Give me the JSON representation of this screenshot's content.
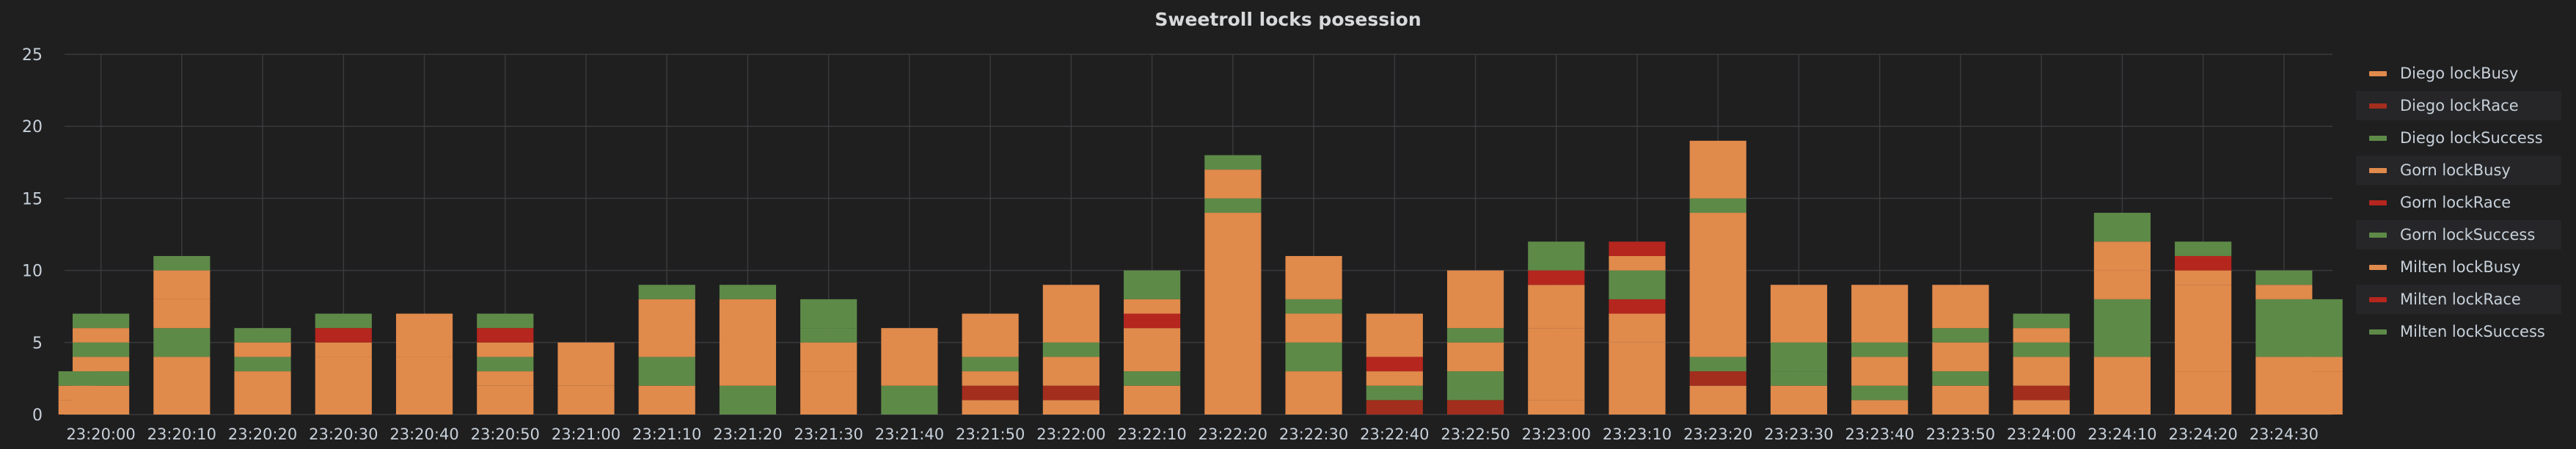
{
  "chart_data": {
    "type": "bar",
    "title": "Sweetroll locks posession",
    "xlabel": "",
    "ylabel": "",
    "ylim": [
      0,
      25
    ],
    "yticks": [
      0,
      5,
      10,
      15,
      20,
      25
    ],
    "x_tick_labels": [
      "23:20:00",
      "23:20:10",
      "23:20:20",
      "23:20:30",
      "23:20:40",
      "23:20:50",
      "23:21:00",
      "23:21:10",
      "23:21:20",
      "23:21:30",
      "23:21:40",
      "23:21:50",
      "23:22:00",
      "23:22:10",
      "23:22:20",
      "23:22:30",
      "23:22:40",
      "23:22:50",
      "23:23:00",
      "23:23:10",
      "23:23:20",
      "23:23:30",
      "23:23:40",
      "23:23:50",
      "23:24:00",
      "23:24:10",
      "23:24:20",
      "23:24:30"
    ],
    "x_range_seconds": [
      -4.5,
      276
    ],
    "grid": true,
    "legend_position": "right",
    "stacked": true,
    "series_order": [
      "Diego lockBusy",
      "Diego lockRace",
      "Diego lockSuccess",
      "Gorn lockBusy",
      "Gorn lockRace",
      "Gorn lockSuccess",
      "Milten lockBusy",
      "Milten lockRace",
      "Milten lockSuccess"
    ],
    "series": [
      {
        "name": "Diego lockBusy",
        "color": "#e08a4c"
      },
      {
        "name": "Diego lockRace",
        "color": "#a32e1e"
      },
      {
        "name": "Diego lockSuccess",
        "color": "#5e8a48"
      },
      {
        "name": "Gorn lockBusy",
        "color": "#e08a4c"
      },
      {
        "name": "Gorn lockRace",
        "color": "#b5261e"
      },
      {
        "name": "Gorn lockSuccess",
        "color": "#5e8a48"
      },
      {
        "name": "Milten lockBusy",
        "color": "#e08a4c"
      },
      {
        "name": "Milten lockRace",
        "color": "#b5261e"
      },
      {
        "name": "Milten lockSuccess",
        "color": "#5e8a48"
      }
    ],
    "x_seconds": [
      -3,
      0,
      10,
      20,
      30,
      40,
      50,
      60,
      70,
      80,
      90,
      100,
      110,
      120,
      130,
      140,
      150,
      160,
      170,
      180,
      190,
      200,
      210,
      220,
      230,
      240,
      250,
      260,
      270,
      275
    ],
    "values": [
      [
        1,
        0,
        0,
        0,
        0,
        0,
        1,
        0,
        1
      ],
      [
        2,
        0,
        1,
        1,
        0,
        1,
        1,
        0,
        1
      ],
      [
        4,
        0,
        2,
        2,
        0,
        0,
        2,
        0,
        1
      ],
      [
        3,
        0,
        0,
        0,
        0,
        1,
        1,
        0,
        1
      ],
      [
        4,
        0,
        0,
        0,
        0,
        0,
        1,
        1,
        1
      ],
      [
        4,
        0,
        0,
        0,
        0,
        0,
        3,
        0,
        0
      ],
      [
        2,
        0,
        0,
        1,
        0,
        1,
        1,
        1,
        1
      ],
      [
        2,
        0,
        0,
        0,
        0,
        0,
        3,
        0,
        0
      ],
      [
        2,
        0,
        2,
        3,
        0,
        0,
        1,
        0,
        1
      ],
      [
        0,
        0,
        2,
        0,
        0,
        0,
        6,
        0,
        1
      ],
      [
        3,
        0,
        0,
        2,
        0,
        1,
        0,
        0,
        2
      ],
      [
        0,
        0,
        2,
        0,
        0,
        0,
        4,
        0,
        0
      ],
      [
        1,
        1,
        0,
        1,
        0,
        1,
        3,
        0,
        0
      ],
      [
        1,
        1,
        0,
        2,
        0,
        1,
        4,
        0,
        0
      ],
      [
        2,
        0,
        1,
        3,
        1,
        0,
        1,
        0,
        2
      ],
      [
        7,
        0,
        0,
        7,
        0,
        1,
        2,
        0,
        1
      ],
      [
        3,
        0,
        2,
        2,
        0,
        1,
        3,
        0,
        0
      ],
      [
        0,
        1,
        1,
        1,
        1,
        0,
        3,
        0,
        0
      ],
      [
        0,
        1,
        2,
        2,
        0,
        1,
        4,
        0,
        0
      ],
      [
        1,
        0,
        0,
        5,
        0,
        0,
        3,
        1,
        2
      ],
      [
        5,
        0,
        0,
        2,
        1,
        2,
        1,
        1,
        0
      ],
      [
        2,
        1,
        1,
        10,
        0,
        1,
        4,
        0,
        0
      ],
      [
        2,
        0,
        1,
        0,
        0,
        2,
        4,
        0,
        0
      ],
      [
        1,
        0,
        1,
        2,
        0,
        1,
        4,
        0,
        0
      ],
      [
        2,
        0,
        1,
        2,
        0,
        1,
        3,
        0,
        0
      ],
      [
        1,
        1,
        0,
        2,
        0,
        1,
        1,
        0,
        1
      ],
      [
        4,
        0,
        4,
        2,
        0,
        0,
        2,
        0,
        2
      ],
      [
        3,
        0,
        0,
        6,
        0,
        0,
        1,
        1,
        1
      ],
      [
        4,
        0,
        0,
        0,
        0,
        4,
        1,
        0,
        1
      ],
      [
        3,
        0,
        0,
        0,
        0,
        0,
        1,
        0,
        4
      ]
    ]
  }
}
